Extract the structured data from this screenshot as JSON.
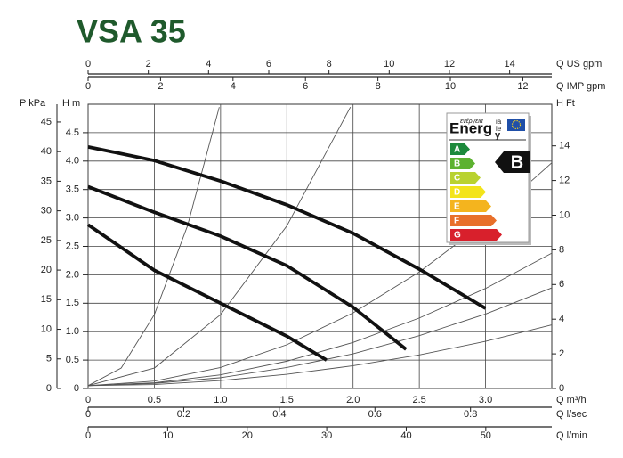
{
  "chart_data": {
    "type": "line",
    "title": "VSA 35",
    "xlabel": "Q m³/h",
    "ylabel": "H m",
    "xlim": [
      0,
      3.5
    ],
    "xticks": [
      0,
      0.5,
      {
        "value": 1,
        "label": "1.0"
      },
      1.5,
      {
        "value": 2,
        "label": "2.0"
      },
      2.5,
      {
        "value": 3,
        "label": "3.0"
      }
    ],
    "ylim": [
      0,
      5
    ],
    "yticks": [
      0,
      0.5,
      {
        "value": 1,
        "label": "1.0"
      },
      1.5,
      {
        "value": 2,
        "label": "2.0"
      },
      2.5,
      {
        "value": 3,
        "label": "3.0"
      },
      3.5,
      {
        "value": 4,
        "label": "4.0"
      },
      4.5
    ],
    "grid": true,
    "extra_axes": [
      {
        "label": "P kPa",
        "position": "left",
        "lim": [
          0,
          48
        ],
        "ticks": [
          0,
          5,
          10,
          15,
          20,
          25,
          30,
          35,
          40,
          45
        ]
      },
      {
        "label": "H Ft",
        "position": "right",
        "lim": [
          0,
          16.4
        ],
        "ticks": [
          0,
          2,
          4,
          6,
          8,
          10,
          12,
          14
        ]
      },
      {
        "label": "Q US gpm",
        "position": "top",
        "lim": [
          0,
          15.4
        ],
        "ticks": [
          0,
          2,
          4,
          6,
          8,
          10,
          12,
          14
        ]
      },
      {
        "label": "Q IMP gpm",
        "position": "top",
        "lim": [
          0,
          12.8
        ],
        "ticks": [
          0,
          2,
          4,
          6,
          8,
          10,
          12
        ]
      },
      {
        "label": "Q l/sec",
        "position": "bottom",
        "lim": [
          0,
          0.97
        ],
        "ticks": [
          0,
          0.2,
          0.4,
          0.6,
          0.8
        ]
      },
      {
        "label": "Q l/min",
        "position": "bottom",
        "lim": [
          0,
          58.3
        ],
        "ticks": [
          0,
          10,
          20,
          30,
          40,
          50
        ]
      }
    ],
    "series": [
      {
        "color": "#111111",
        "x": [
          0,
          0.5,
          1,
          1.5,
          2,
          2.5,
          3
        ],
        "values": [
          4.25,
          4.01,
          3.65,
          3.23,
          2.73,
          2.1,
          1.41
        ]
      },
      {
        "color": "#111111",
        "x": [
          0,
          0.5,
          1,
          1.5,
          2,
          2.4
        ],
        "values": [
          3.55,
          3.1,
          2.68,
          2.16,
          1.43,
          0.69
        ]
      },
      {
        "color": "#111111",
        "x": [
          0,
          0.5,
          1,
          1.5,
          1.8
        ],
        "values": [
          2.88,
          2.08,
          1.5,
          0.92,
          0.5
        ]
      }
    ],
    "system_curves": [
      {
        "color": "#555555",
        "x": [
          0,
          0.25,
          0.5,
          0.75,
          0.99
        ],
        "values": [
          0.05,
          0.36,
          1.3,
          2.86,
          4.95
        ]
      },
      {
        "color": "#555555",
        "x": [
          0,
          0.5,
          1,
          1.5,
          1.98
        ],
        "values": [
          0.05,
          0.36,
          1.3,
          2.86,
          4.95
        ]
      },
      {
        "color": "#555555",
        "x": [
          0,
          0.5,
          1,
          1.5,
          2,
          2.5,
          3,
          3.5
        ],
        "values": [
          0.05,
          0.13,
          0.37,
          0.77,
          1.33,
          2.05,
          2.93,
          3.97
        ]
      },
      {
        "color": "#555555",
        "x": [
          0,
          0.5,
          1,
          1.5,
          2,
          2.5,
          3,
          3.5
        ],
        "values": [
          0.05,
          0.1,
          0.24,
          0.48,
          0.81,
          1.24,
          1.76,
          2.38
        ]
      },
      {
        "color": "#555555",
        "x": [
          0,
          0.5,
          1,
          1.5,
          2,
          2.5,
          3,
          3.5
        ],
        "values": [
          0.05,
          0.09,
          0.19,
          0.37,
          0.61,
          0.93,
          1.31,
          1.77
        ]
      },
      {
        "color": "#555555",
        "x": [
          0,
          0.5,
          1,
          1.5,
          2,
          2.5,
          3,
          3.5
        ],
        "values": [
          0.05,
          0.07,
          0.14,
          0.25,
          0.4,
          0.59,
          0.83,
          1.12
        ]
      }
    ]
  },
  "energy_label": {
    "word": "Energ",
    "word_end": "y",
    "languages": [
      "ενέργεια",
      "ia",
      "ie"
    ],
    "classes": [
      "A",
      "B",
      "C",
      "D",
      "E",
      "F",
      "G"
    ],
    "colors": [
      "#1d8a3c",
      "#5db231",
      "#b9d22f",
      "#f3e41b",
      "#f4b41e",
      "#e8702b",
      "#d8202c"
    ],
    "rating": "B"
  }
}
